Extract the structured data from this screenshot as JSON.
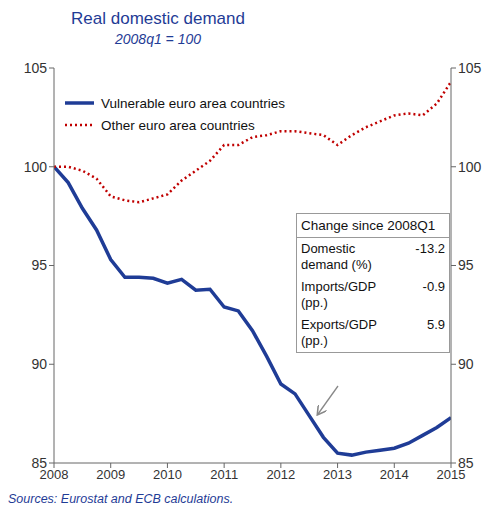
{
  "chart_data": {
    "type": "line",
    "title": "Real domestic demand",
    "subtitle": "2008q1 = 100",
    "x": [
      2008,
      2008.25,
      2008.5,
      2008.75,
      2009,
      2009.25,
      2009.5,
      2009.75,
      2010,
      2010.25,
      2010.5,
      2010.75,
      2011,
      2011.25,
      2011.5,
      2011.75,
      2012,
      2012.25,
      2012.5,
      2012.75,
      2013,
      2013.25,
      2013.5,
      2013.75,
      2014,
      2014.25,
      2014.5,
      2014.75,
      2015
    ],
    "series": [
      {
        "name": "Vulnerable euro area countries",
        "color": "#1F3C96",
        "line_style": "solid",
        "values": [
          100,
          99.2,
          97.9,
          96.8,
          95.3,
          94.4,
          94.4,
          94.35,
          94.1,
          94.3,
          93.75,
          93.8,
          92.9,
          92.7,
          91.7,
          90.4,
          89.0,
          88.5,
          87.4,
          86.3,
          85.5,
          85.4,
          85.55,
          85.65,
          85.75,
          86.0,
          86.4,
          86.8,
          87.3
        ]
      },
      {
        "name": "Other euro area countries",
        "color": "#C00000",
        "line_style": "dotted",
        "values": [
          100,
          100,
          99.8,
          99.4,
          98.5,
          98.3,
          98.2,
          98.4,
          98.6,
          99.3,
          99.8,
          100.3,
          101.1,
          101.1,
          101.5,
          101.6,
          101.8,
          101.8,
          101.7,
          101.6,
          101.1,
          101.6,
          102.0,
          102.3,
          102.6,
          102.7,
          102.6,
          103.2,
          104.3
        ]
      }
    ],
    "xlim": [
      2008,
      2015
    ],
    "xticks": [
      2008,
      2009,
      2010,
      2011,
      2012,
      2013,
      2014,
      2015
    ],
    "ylim": [
      85,
      105
    ],
    "yticks": [
      85,
      90,
      95,
      100,
      105
    ],
    "y2lim": [
      85,
      105
    ],
    "y2ticks": [
      85,
      90,
      95,
      100,
      105
    ],
    "grid": false,
    "legend": "upper left",
    "annotation": {
      "title": "Change since 2008Q1",
      "rows": [
        {
          "label": "Domestic demand (%)",
          "value": -13.2
        },
        {
          "label": "Imports/GDP (pp.)",
          "value": -0.9
        },
        {
          "label": "Exports/GDP (pp.)",
          "value": 5.9
        }
      ]
    },
    "source": "Sources: Eurostat and ECB calculations."
  }
}
